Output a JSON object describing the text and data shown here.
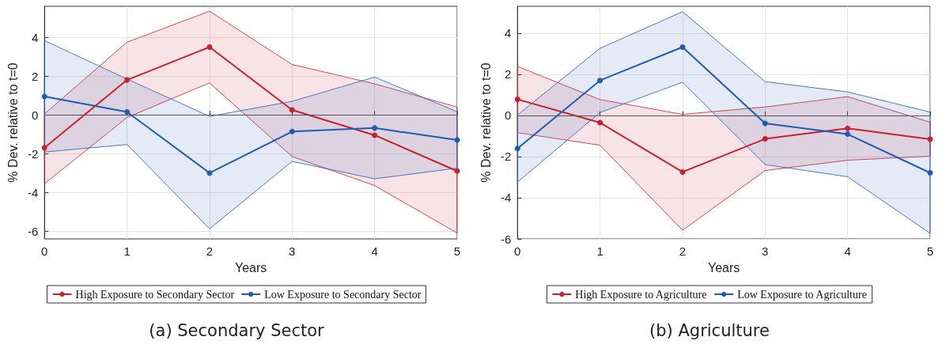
{
  "chart_data": [
    {
      "type": "line",
      "title": "(a) Secondary Sector",
      "xlabel": "Years",
      "ylabel": "% Dev. relative to t=0",
      "x": [
        0,
        1,
        2,
        3,
        4,
        5
      ],
      "xlim": [
        0,
        5
      ],
      "xticks": [
        0,
        1,
        2,
        3,
        4,
        5
      ],
      "ylim": [
        -6.4,
        5.6
      ],
      "yticks": [
        -6,
        -4,
        -2,
        0,
        2,
        4
      ],
      "grid": true,
      "legend": "bottom",
      "marker": "circle",
      "line_style": "solid",
      "ref_lines": [
        {
          "axis": "y",
          "value": 0,
          "color": "#555555"
        }
      ],
      "series": [
        {
          "name": "High Exposure to Secondary Sector",
          "color": "#c8202f",
          "values": [
            -1.7,
            1.8,
            3.5,
            0.25,
            -1.05,
            -2.9
          ],
          "lower": [
            -3.55,
            -0.14,
            1.65,
            -2.15,
            -3.65,
            -6.1
          ],
          "upper": [
            0.05,
            3.75,
            5.35,
            2.6,
            1.6,
            0.4
          ]
        },
        {
          "name": "Low Exposure to Secondary Sector",
          "color": "#1f5bb5",
          "values": [
            0.95,
            0.15,
            -3.0,
            -0.86,
            -0.68,
            -1.3
          ],
          "lower": [
            -1.92,
            -1.53,
            -5.88,
            -2.4,
            -3.3,
            -2.75
          ],
          "upper": [
            3.83,
            1.85,
            -0.08,
            0.7,
            1.95,
            0.16
          ]
        }
      ]
    },
    {
      "type": "line",
      "title": "(b) Agriculture",
      "xlabel": "Years",
      "ylabel": "% Dev. relative to t=0",
      "x": [
        0,
        1,
        2,
        3,
        4,
        5
      ],
      "xlim": [
        0,
        5
      ],
      "xticks": [
        0,
        1,
        2,
        3,
        4,
        5
      ],
      "ylim": [
        -6,
        5.3
      ],
      "yticks": [
        -6,
        -4,
        -2,
        0,
        2,
        4
      ],
      "grid": true,
      "legend": "bottom",
      "marker": "circle",
      "line_style": "solid",
      "ref_lines": [
        {
          "axis": "y",
          "value": 0,
          "color": "#555555"
        }
      ],
      "series": [
        {
          "name": "High Exposure to Agriculture",
          "color": "#c8202f",
          "values": [
            0.78,
            -0.35,
            -2.75,
            -1.14,
            -0.63,
            -1.16
          ],
          "lower": [
            -0.84,
            -1.45,
            -5.58,
            -2.68,
            -2.18,
            -1.98
          ],
          "upper": [
            2.38,
            0.77,
            0.05,
            0.41,
            0.91,
            -0.33
          ]
        },
        {
          "name": "Low Exposure to Agriculture",
          "color": "#1f5bb5",
          "values": [
            -1.61,
            1.7,
            3.32,
            -0.39,
            -0.91,
            -2.79
          ],
          "lower": [
            -3.24,
            0.14,
            1.61,
            -2.39,
            -2.98,
            -5.73
          ],
          "upper": [
            0.02,
            3.26,
            5.04,
            1.64,
            1.14,
            0.16
          ]
        }
      ]
    }
  ]
}
